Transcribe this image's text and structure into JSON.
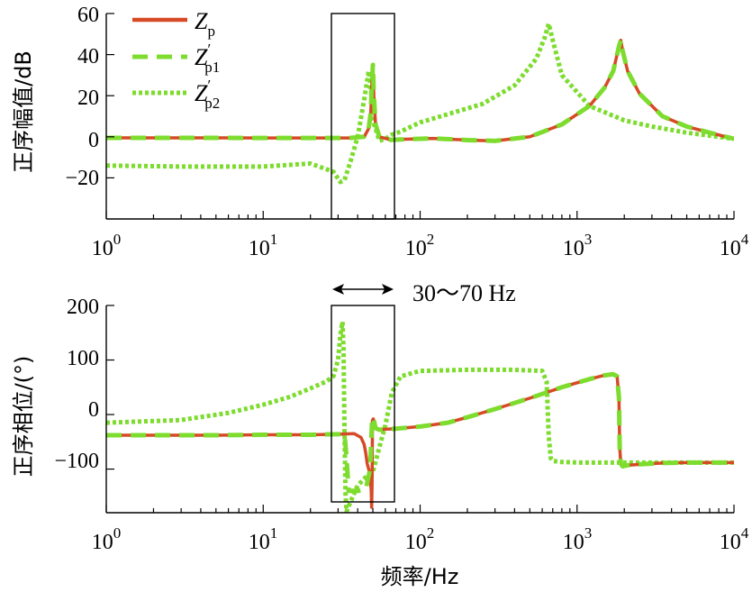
{
  "chart_data": [
    {
      "id": "magnitude",
      "type": "line",
      "xscale": "log",
      "xlim": [
        1,
        10000
      ],
      "ylim": [
        -40,
        60
      ],
      "ylabel": "正序幅值/dB",
      "xlabel": "",
      "yticks": [
        "−20",
        "0",
        "20",
        "40",
        "60"
      ],
      "ytick_values": [
        -20,
        0,
        20,
        40,
        60
      ],
      "xtick_bases": [
        "10",
        "10",
        "10",
        "10",
        "10"
      ],
      "xtick_exps": [
        "0",
        "1",
        "2",
        "3",
        "4"
      ],
      "xtick_values": [
        1,
        10,
        100,
        1000,
        10000
      ],
      "series": [
        {
          "name": "Zp",
          "x": [
            1,
            5,
            10,
            20,
            35,
            44,
            47,
            48.5,
            49.2,
            50,
            50.7,
            52,
            55,
            65,
            80,
            120,
            200,
            300,
            500,
            800,
            1200,
            1500,
            1700,
            1850,
            1900,
            1950,
            2100,
            2500,
            3500,
            5000,
            7000,
            10000
          ],
          "y": [
            -0.5,
            -0.5,
            -0.6,
            -0.6,
            -0.6,
            0,
            4,
            12,
            25,
            35,
            20,
            6,
            0,
            -1.5,
            -1.2,
            -0.8,
            -1.6,
            -2,
            0,
            6,
            15,
            24,
            32,
            44,
            47,
            42,
            32,
            21,
            10,
            5,
            2,
            -1
          ]
        },
        {
          "name": "Zp1",
          "x": [
            1,
            5,
            10,
            20,
            35,
            44,
            47,
            48.5,
            49.2,
            50,
            50.7,
            52,
            55,
            65,
            80,
            120,
            200,
            300,
            500,
            800,
            1200,
            1500,
            1700,
            1850,
            1900,
            1950,
            2100,
            2500,
            3500,
            5000,
            7000,
            10000
          ],
          "y": [
            -0.5,
            -0.5,
            -0.6,
            -0.6,
            -0.6,
            0,
            4,
            12,
            25,
            35,
            20,
            6,
            0,
            -1.5,
            -1.2,
            -0.8,
            -1.6,
            -2,
            0,
            6,
            15,
            24,
            32,
            44,
            47,
            42,
            32,
            21,
            10,
            5,
            2,
            -1
          ]
        },
        {
          "name": "Zp2",
          "x": [
            1,
            3,
            10,
            20,
            28,
            31,
            33,
            36,
            40,
            44,
            47,
            49,
            51,
            55,
            60,
            66,
            75,
            100,
            150,
            250,
            400,
            550,
            620,
            660,
            700,
            800,
            1200,
            2000,
            3000,
            5000,
            10000
          ],
          "y": [
            -14,
            -14.5,
            -14.5,
            -13,
            -17,
            -22,
            -21,
            -12,
            0,
            18,
            32,
            20,
            6,
            -2,
            -1,
            1,
            2.5,
            7,
            11,
            16,
            25,
            38,
            48,
            55,
            47,
            30,
            15,
            8,
            5,
            2,
            -1
          ]
        }
      ],
      "legend": [
        {
          "base": "Z",
          "sub": "p",
          "prime": ""
        },
        {
          "base": "Z",
          "sub": "p1",
          "prime": "′"
        },
        {
          "base": "Z",
          "sub": "p2",
          "prime": "′"
        }
      ],
      "legend_position": "top-left"
    },
    {
      "id": "phase",
      "type": "line",
      "xscale": "log",
      "xlim": [
        1,
        10000
      ],
      "ylim": [
        -180,
        200
      ],
      "ylabel": "正序相位/(°)",
      "xlabel": "频率/Hz",
      "yticks": [
        "−100",
        "0",
        "100",
        "200"
      ],
      "ytick_values": [
        -100,
        0,
        100,
        200
      ],
      "xtick_bases": [
        "10",
        "10",
        "10",
        "10",
        "10"
      ],
      "xtick_exps": [
        "0",
        "1",
        "2",
        "3",
        "4"
      ],
      "xtick_values": [
        1,
        10,
        100,
        1000,
        10000
      ],
      "series": [
        {
          "name": "Zp",
          "x": [
            1,
            5,
            10,
            20,
            30,
            38,
            42,
            44,
            45,
            46,
            47,
            48,
            48.8,
            49.1,
            49.4,
            49.7,
            50.3,
            51,
            52,
            55,
            60,
            70,
            100,
            150,
            200,
            300,
            500,
            800,
            1200,
            1500,
            1700,
            1800,
            1850,
            1870,
            1900,
            1950,
            2100,
            2600,
            3500,
            5000,
            10000
          ],
          "y": [
            -38,
            -38,
            -37,
            -37,
            -36,
            -35,
            -42,
            -55,
            -70,
            -90,
            -100,
            -110,
            -140,
            -170,
            -130,
            -10,
            -8,
            -15,
            -25,
            -28,
            -27,
            -26,
            -22,
            -15,
            -5,
            10,
            30,
            50,
            65,
            72,
            74,
            70,
            30,
            -60,
            -90,
            -95,
            -93,
            -91,
            -89,
            -88,
            -88
          ]
        },
        {
          "name": "Zp1",
          "x": [
            1,
            5,
            10,
            20,
            30,
            33,
            34,
            35,
            40,
            45,
            48,
            49.5,
            50.5,
            52,
            55,
            60,
            70,
            100,
            150,
            200,
            300,
            500,
            800,
            1200,
            1500,
            1700,
            1800,
            1850,
            1870,
            1900,
            1950,
            2100,
            2600,
            3500,
            5000,
            10000
          ],
          "y": [
            -38,
            -38,
            -37,
            -37,
            -36,
            -36,
            -80,
            -140,
            -140,
            -138,
            -100,
            -5,
            -8,
            -25,
            -28,
            -27,
            -26,
            -22,
            -15,
            -5,
            10,
            30,
            50,
            65,
            72,
            74,
            70,
            30,
            -60,
            -90,
            -95,
            -93,
            -91,
            -89,
            -88,
            -88
          ]
        },
        {
          "name": "Zp2",
          "x": [
            1,
            3,
            6,
            10,
            15,
            20,
            25,
            28,
            30,
            31,
            32,
            32.5,
            33,
            33.5,
            34,
            36,
            40,
            45,
            48,
            50,
            55,
            60,
            66,
            75,
            100,
            200,
            400,
            600,
            640,
            660,
            680,
            700,
            800,
            1000,
            2000,
            3000,
            5000,
            10000
          ],
          "y": [
            -15,
            -10,
            3,
            18,
            33,
            48,
            60,
            70,
            100,
            145,
            170,
            120,
            -40,
            -150,
            -178,
            -160,
            -130,
            -115,
            -110,
            -105,
            -60,
            -20,
            40,
            70,
            80,
            82,
            82,
            80,
            60,
            -40,
            -80,
            -85,
            -87,
            -88,
            -88,
            -88,
            -88,
            -88
          ]
        }
      ]
    }
  ],
  "annotation": {
    "label": "30〜70 Hz",
    "band_hz": [
      30,
      70
    ]
  }
}
